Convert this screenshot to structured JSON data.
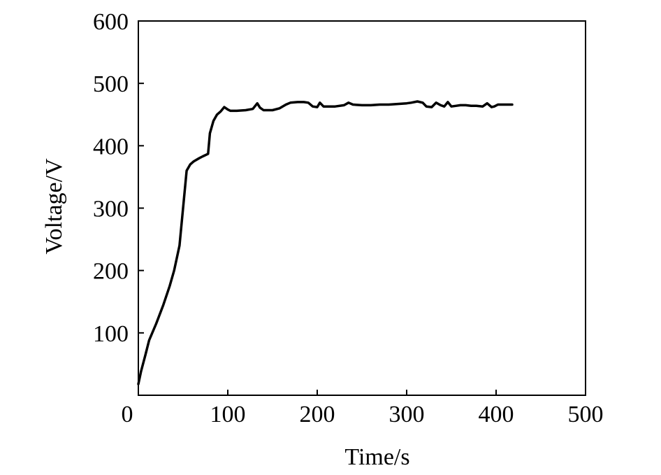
{
  "chart_data": {
    "type": "line",
    "title": "",
    "xlabel": "Time/s",
    "ylabel": "Voltage/V",
    "xlim": [
      0,
      500
    ],
    "ylim": [
      0,
      600
    ],
    "xticks": [
      0,
      100,
      200,
      300,
      400,
      500
    ],
    "yticks": [
      100,
      200,
      300,
      400,
      500,
      600
    ],
    "xtick_labels": [
      "0",
      "100",
      "200",
      "300",
      "400",
      "500"
    ],
    "ytick_labels": [
      "100",
      "200",
      "300",
      "400",
      "500",
      "600"
    ],
    "grid": false,
    "legend": "none",
    "colors": {
      "line": "#000000",
      "axes": "#000000"
    },
    "series": [
      {
        "x": [
          0,
          3,
          8,
          12,
          20,
          28,
          35,
          40,
          46,
          50,
          54,
          58,
          62,
          68,
          72,
          78,
          80,
          81,
          84,
          88,
          92,
          96,
          100,
          103,
          110,
          120,
          128,
          133,
          136,
          140,
          150,
          158,
          165,
          170,
          178,
          185,
          190,
          195,
          200,
          203,
          207,
          212,
          220,
          230,
          235,
          240,
          250,
          260,
          270,
          280,
          290,
          300,
          305,
          312,
          318,
          322,
          328,
          333,
          338,
          342,
          346,
          350,
          355,
          360,
          366,
          372,
          378,
          385,
          390,
          395,
          398,
          402,
          408,
          412,
          418
        ],
        "y": [
          18,
          38,
          65,
          88,
          115,
          145,
          175,
          200,
          240,
          300,
          360,
          370,
          375,
          380,
          383,
          387,
          420,
          425,
          440,
          450,
          455,
          462,
          458,
          456,
          456,
          457,
          459,
          468,
          461,
          457,
          457,
          460,
          466,
          469,
          470,
          470,
          469,
          463,
          462,
          469,
          463,
          463,
          463,
          465,
          469,
          466,
          465,
          465,
          466,
          466,
          467,
          468,
          469,
          471,
          469,
          463,
          462,
          469,
          465,
          463,
          470,
          463,
          464,
          465,
          465,
          464,
          464,
          463,
          468,
          462,
          463,
          466,
          466,
          466,
          466
        ]
      }
    ]
  }
}
